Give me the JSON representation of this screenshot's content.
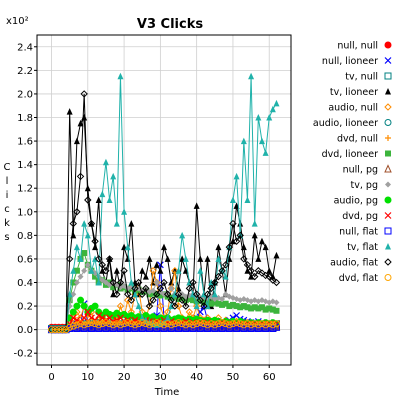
{
  "chart_data": {
    "type": "line",
    "title": "V3 Clicks",
    "xlabel": "Time",
    "ylabel": "Clicks",
    "y_multiplier_label": "x10²",
    "xlim": [
      -4,
      66
    ],
    "ylim": [
      -0.3,
      2.5
    ],
    "x_ticks": [
      0,
      10,
      20,
      30,
      40,
      50,
      60
    ],
    "x_tick_labels": [
      "0",
      "10",
      "20",
      "30",
      "40",
      "50",
      "60"
    ],
    "y_ticks": [
      -0.2,
      0.0,
      0.2,
      0.4,
      0.6,
      0.8,
      1.0,
      1.2,
      1.4,
      1.6,
      1.8,
      2.0,
      2.2,
      2.4
    ],
    "y_tick_labels": [
      "-0.2",
      "0.0",
      "0.2",
      "0.4",
      "0.6",
      "0.8",
      "1.0",
      "1.2",
      "1.4",
      "1.6",
      "1.8",
      "2.0",
      "2.2",
      "2.4"
    ],
    "grid": true,
    "legend_position": "right",
    "x": [
      0,
      1,
      2,
      3,
      4,
      5,
      6,
      7,
      8,
      9,
      10,
      11,
      12,
      13,
      14,
      15,
      16,
      17,
      18,
      19,
      20,
      21,
      22,
      23,
      24,
      25,
      26,
      27,
      28,
      29,
      30,
      31,
      32,
      33,
      34,
      35,
      36,
      37,
      38,
      39,
      40,
      41,
      42,
      43,
      44,
      45,
      46,
      47,
      48,
      49,
      50,
      51,
      52,
      53,
      54,
      55,
      56,
      57,
      58,
      59,
      60,
      61,
      62
    ],
    "series": [
      {
        "name": "null, null",
        "color": "#ff0000",
        "marker": "circle-filled",
        "values": [
          0.02,
          0.02,
          0.02,
          0.02,
          0.02,
          0.03,
          0.03,
          0.02,
          0.03,
          0.03,
          0.03,
          0.02,
          0.03,
          0.03,
          0.02,
          0.03,
          0.02,
          0.03,
          0.03,
          0.02,
          0.03,
          0.02,
          0.03,
          0.03,
          0.02,
          0.03,
          0.02,
          0.03,
          0.02,
          0.03,
          0.03,
          0.02,
          0.03,
          0.02,
          0.03,
          0.02,
          0.03,
          0.03,
          0.02,
          0.03,
          0.02,
          0.03,
          0.03,
          0.02,
          0.03,
          0.02,
          0.03,
          0.02,
          0.03,
          0.03,
          0.02,
          0.03,
          0.02,
          0.03,
          0.02,
          0.03,
          0.02,
          0.03,
          0.02,
          0.03,
          0.02,
          0.03,
          0.02
        ]
      },
      {
        "name": "null, lioneer",
        "color": "#0000ff",
        "marker": "x",
        "values": [
          0.0,
          0.0,
          0.0,
          0.0,
          0.0,
          0.02,
          0.04,
          0.05,
          0.04,
          0.22,
          0.06,
          0.04,
          0.05,
          0.03,
          0.04,
          0.06,
          0.04,
          0.03,
          0.05,
          0.06,
          0.04,
          0.05,
          0.04,
          0.07,
          0.05,
          0.06,
          0.1,
          0.08,
          0.07,
          0.12,
          0.55,
          0.1,
          0.08,
          0.06,
          0.07,
          0.05,
          0.08,
          0.06,
          0.07,
          0.08,
          0.1,
          0.15,
          0.2,
          0.08,
          0.07,
          0.06,
          0.05,
          0.07,
          0.06,
          0.08,
          0.1,
          0.12,
          0.09,
          0.08,
          0.07,
          0.06,
          0.05,
          0.07,
          0.06,
          0.05,
          0.06,
          0.05,
          0.04
        ]
      },
      {
        "name": "tv, null",
        "color": "#008080",
        "marker": "square",
        "values": [
          0.01,
          0.01,
          0.01,
          0.01,
          0.01,
          0.02,
          0.03,
          0.04,
          0.05,
          0.04,
          0.05,
          0.04,
          0.05,
          0.06,
          0.05,
          0.04,
          0.05,
          0.06,
          0.05,
          0.04,
          0.05,
          0.06,
          0.05,
          0.04,
          0.05,
          0.06,
          0.05,
          0.04,
          0.05,
          0.06,
          0.05,
          0.04,
          0.05,
          0.04,
          0.05,
          0.06,
          0.05,
          0.04,
          0.05,
          0.04,
          0.05,
          0.06,
          0.05,
          0.04,
          0.05,
          0.04,
          0.05,
          0.06,
          0.05,
          0.04,
          0.05,
          0.06,
          0.05,
          0.04,
          0.05,
          0.04,
          0.05,
          0.04,
          0.05,
          0.04,
          0.05,
          0.04,
          0.05
        ]
      },
      {
        "name": "tv, lioneer",
        "color": "#000000",
        "marker": "triangle-filled",
        "values": [
          0.0,
          0.0,
          0.0,
          0.0,
          0.0,
          1.85,
          0.8,
          1.6,
          1.75,
          1.8,
          1.2,
          0.9,
          0.7,
          1.1,
          0.5,
          0.4,
          0.6,
          0.3,
          0.5,
          0.35,
          0.7,
          0.6,
          0.9,
          0.4,
          0.3,
          0.5,
          0.45,
          0.6,
          0.4,
          0.55,
          0.5,
          0.7,
          0.6,
          0.4,
          0.5,
          0.35,
          0.6,
          0.5,
          0.4,
          0.3,
          1.05,
          0.6,
          0.3,
          0.6,
          0.2,
          0.4,
          0.7,
          0.5,
          0.3,
          0.6,
          0.75,
          1.05,
          0.9,
          0.7,
          0.5,
          0.45,
          0.8,
          0.6,
          0.75,
          0.7,
          0.5,
          0.45,
          0.63
        ]
      },
      {
        "name": "audio, null",
        "color": "#ff8c00",
        "marker": "diamond",
        "values": [
          0.0,
          0.0,
          0.0,
          0.0,
          0.0,
          0.05,
          0.1,
          0.15,
          0.1,
          0.2,
          0.1,
          0.15,
          0.05,
          0.08,
          0.1,
          0.07,
          0.12,
          0.1,
          0.08,
          0.2,
          0.1,
          0.25,
          0.15,
          0.3,
          0.35,
          0.15,
          0.1,
          0.2,
          0.5,
          0.4,
          0.2,
          0.1,
          0.15,
          0.35,
          0.5,
          0.2,
          0.1,
          0.08,
          0.15,
          0.1,
          0.2,
          0.1,
          0.08,
          0.1,
          0.06,
          0.08,
          0.1,
          0.05,
          0.08,
          0.06,
          0.05,
          0.07,
          0.06,
          0.05,
          0.06,
          0.05,
          0.04,
          0.05,
          0.04,
          0.05,
          0.04,
          0.05,
          0.04
        ]
      },
      {
        "name": "audio, lioneer",
        "color": "#008080",
        "marker": "circle",
        "values": [
          0.0,
          0.0,
          0.0,
          0.0,
          0.0,
          0.02,
          0.03,
          0.02,
          0.03,
          0.02,
          0.03,
          0.02,
          0.03,
          0.02,
          0.03,
          0.02,
          0.03,
          0.02,
          0.03,
          0.02,
          0.03,
          0.02,
          0.03,
          0.02,
          0.03,
          0.02,
          0.03,
          0.02,
          0.03,
          0.02,
          0.03,
          0.02,
          0.03,
          0.02,
          0.03,
          0.02,
          0.03,
          0.02,
          0.03,
          0.02,
          0.03,
          0.02,
          0.03,
          0.02,
          0.03,
          0.02,
          0.03,
          0.02,
          0.03,
          0.02,
          0.03,
          0.02,
          0.03,
          0.02,
          0.03,
          0.02,
          0.03,
          0.02,
          0.03,
          0.02,
          0.03,
          0.02,
          0.03
        ]
      },
      {
        "name": "dvd, null",
        "color": "#ff8c00",
        "marker": "plus",
        "values": [
          0.0,
          0.0,
          0.0,
          0.0,
          0.0,
          0.02,
          0.04,
          0.06,
          0.05,
          0.04,
          0.06,
          0.05,
          0.04,
          0.06,
          0.05,
          0.04,
          0.05,
          0.04,
          0.06,
          0.05,
          0.04,
          0.05,
          0.06,
          0.04,
          0.05,
          0.04,
          0.06,
          0.05,
          0.04,
          0.05,
          0.06,
          0.04,
          0.05,
          0.04,
          0.06,
          0.05,
          0.04,
          0.05,
          0.06,
          0.04,
          0.05,
          0.04,
          0.06,
          0.05,
          0.04,
          0.05,
          0.06,
          0.04,
          0.05,
          0.04,
          0.06,
          0.05,
          0.04,
          0.05,
          0.06,
          0.04,
          0.05,
          0.04,
          0.05,
          0.04,
          0.05,
          0.04,
          0.05
        ]
      },
      {
        "name": "dvd, lioneer",
        "color": "#3cb43c",
        "marker": "square-filled",
        "values": [
          0.0,
          0.0,
          0.0,
          0.0,
          0.0,
          0.25,
          0.4,
          0.5,
          0.6,
          0.65,
          0.55,
          0.5,
          0.45,
          0.4,
          0.42,
          0.38,
          0.4,
          0.36,
          0.38,
          0.35,
          0.36,
          0.34,
          0.35,
          0.33,
          0.34,
          0.32,
          0.33,
          0.3,
          0.31,
          0.3,
          0.29,
          0.3,
          0.28,
          0.27,
          0.28,
          0.26,
          0.27,
          0.25,
          0.26,
          0.25,
          0.24,
          0.25,
          0.23,
          0.24,
          0.22,
          0.23,
          0.22,
          0.21,
          0.22,
          0.2,
          0.21,
          0.2,
          0.19,
          0.2,
          0.19,
          0.18,
          0.19,
          0.18,
          0.19,
          0.17,
          0.18,
          0.17,
          0.16
        ]
      },
      {
        "name": "null, pg",
        "color": "#a0522d",
        "marker": "triangle",
        "values": [
          0.0,
          0.0,
          0.0,
          0.0,
          0.0,
          0.01,
          0.02,
          0.01,
          0.02,
          0.01,
          0.02,
          0.01,
          0.02,
          0.01,
          0.02,
          0.01,
          0.02,
          0.01,
          0.02,
          0.01,
          0.02,
          0.01,
          0.02,
          0.01,
          0.02,
          0.01,
          0.02,
          0.01,
          0.02,
          0.01,
          0.02,
          0.01,
          0.02,
          0.01,
          0.02,
          0.01,
          0.02,
          0.01,
          0.02,
          0.01,
          0.02,
          0.01,
          0.02,
          0.01,
          0.02,
          0.01,
          0.02,
          0.01,
          0.02,
          0.01,
          0.02,
          0.01,
          0.02,
          0.01,
          0.02,
          0.01,
          0.02,
          0.01,
          0.02,
          0.01,
          0.02,
          0.01,
          0.02
        ]
      },
      {
        "name": "tv, pg",
        "color": "#a0a0a0",
        "marker": "diamond-filled",
        "values": [
          0.0,
          0.0,
          0.0,
          0.0,
          0.0,
          0.2,
          0.3,
          0.4,
          0.45,
          0.5,
          0.55,
          0.5,
          0.48,
          0.45,
          0.42,
          0.4,
          0.38,
          0.4,
          0.38,
          0.36,
          0.37,
          0.35,
          0.36,
          0.34,
          0.35,
          0.33,
          0.34,
          0.32,
          0.33,
          0.4,
          0.32,
          0.3,
          0.31,
          0.35,
          0.3,
          0.29,
          0.3,
          0.28,
          0.29,
          0.3,
          0.28,
          0.27,
          0.28,
          0.27,
          0.28,
          0.26,
          0.27,
          0.26,
          0.3,
          0.28,
          0.27,
          0.26,
          0.25,
          0.26,
          0.25,
          0.24,
          0.25,
          0.24,
          0.25,
          0.24,
          0.23,
          0.24,
          0.23
        ]
      },
      {
        "name": "audio, pg",
        "color": "#00e000",
        "marker": "circle-filled",
        "values": [
          0.0,
          0.0,
          0.0,
          0.0,
          0.0,
          0.1,
          0.15,
          0.2,
          0.25,
          0.2,
          0.15,
          0.18,
          0.2,
          0.15,
          0.12,
          0.15,
          0.13,
          0.12,
          0.14,
          0.12,
          0.13,
          0.11,
          0.12,
          0.1,
          0.11,
          0.1,
          0.12,
          0.1,
          0.11,
          0.09,
          0.1,
          0.09,
          0.1,
          0.08,
          0.09,
          0.1,
          0.09,
          0.08,
          0.09,
          0.08,
          0.09,
          0.08,
          0.07,
          0.08,
          0.07,
          0.08,
          0.07,
          0.06,
          0.07,
          0.06,
          0.07,
          0.06,
          0.07,
          0.06,
          0.05,
          0.06,
          0.05,
          0.06,
          0.05,
          0.06,
          0.05,
          0.06,
          0.05
        ]
      },
      {
        "name": "dvd, pg",
        "color": "#ff0000",
        "marker": "x",
        "values": [
          0.0,
          0.0,
          0.0,
          0.0,
          0.0,
          0.05,
          0.1,
          0.08,
          0.06,
          0.1,
          0.15,
          0.1,
          0.08,
          0.12,
          0.1,
          0.08,
          0.1,
          0.07,
          0.08,
          0.1,
          0.07,
          0.08,
          0.06,
          0.08,
          0.07,
          0.06,
          0.08,
          0.07,
          0.06,
          0.07,
          0.06,
          0.08,
          0.06,
          0.07,
          0.06,
          0.05,
          0.06,
          0.07,
          0.05,
          0.06,
          0.05,
          0.06,
          0.05,
          0.06,
          0.05,
          0.04,
          0.05,
          0.06,
          0.05,
          0.04,
          0.05,
          0.04,
          0.05,
          0.04,
          0.05,
          0.04,
          0.05,
          0.04,
          0.05,
          0.04,
          0.05,
          0.04,
          0.05
        ]
      },
      {
        "name": "null, flat",
        "color": "#0000ff",
        "marker": "square",
        "values": [
          0.0,
          0.0,
          0.0,
          0.0,
          0.0,
          0.01,
          0.02,
          0.01,
          0.02,
          0.01,
          0.02,
          0.01,
          0.02,
          0.01,
          0.02,
          0.01,
          0.02,
          0.01,
          0.02,
          0.01,
          0.02,
          0.01,
          0.02,
          0.01,
          0.02,
          0.01,
          0.02,
          0.01,
          0.02,
          0.01,
          0.02,
          0.01,
          0.02,
          0.01,
          0.02,
          0.01,
          0.02,
          0.01,
          0.02,
          0.01,
          0.02,
          0.01,
          0.02,
          0.01,
          0.02,
          0.01,
          0.02,
          0.01,
          0.02,
          0.01,
          0.02,
          0.01,
          0.02,
          0.01,
          0.02,
          0.01,
          0.02,
          0.01,
          0.02,
          0.01,
          0.02,
          0.01,
          0.02
        ]
      },
      {
        "name": "tv, flat",
        "color": "#20b2aa",
        "marker": "triangle-filled",
        "values": [
          0.0,
          0.0,
          0.0,
          0.0,
          0.0,
          0.3,
          0.5,
          0.7,
          0.6,
          0.9,
          0.8,
          0.5,
          0.6,
          0.4,
          1.15,
          1.42,
          1.1,
          1.3,
          0.9,
          2.15,
          1.0,
          0.7,
          0.4,
          0.3,
          0.2,
          0.1,
          0.08,
          0.06,
          0.05,
          0.04,
          0.05,
          0.06,
          0.1,
          0.2,
          0.3,
          0.5,
          0.8,
          0.6,
          0.4,
          0.3,
          0.2,
          0.5,
          0.3,
          0.2,
          0.4,
          0.3,
          0.6,
          0.5,
          0.45,
          0.7,
          1.1,
          1.3,
          0.8,
          1.6,
          1.1,
          2.15,
          0.9,
          1.8,
          1.6,
          1.5,
          1.8,
          1.87,
          1.92
        ]
      },
      {
        "name": "audio, flat",
        "color": "#000000",
        "marker": "diamond",
        "values": [
          0.0,
          0.0,
          0.0,
          0.0,
          0.0,
          0.6,
          0.9,
          1.0,
          1.3,
          2.0,
          1.1,
          0.9,
          0.75,
          0.6,
          0.55,
          0.5,
          0.6,
          0.4,
          0.3,
          0.4,
          0.5,
          0.3,
          0.25,
          0.35,
          0.4,
          0.3,
          0.35,
          0.2,
          0.25,
          0.3,
          0.35,
          0.4,
          0.3,
          0.25,
          0.2,
          0.3,
          0.25,
          0.2,
          0.35,
          0.4,
          0.3,
          0.25,
          0.2,
          0.3,
          0.35,
          0.4,
          0.45,
          0.5,
          0.55,
          0.7,
          0.9,
          0.75,
          0.8,
          0.6,
          0.55,
          0.5,
          0.45,
          0.5,
          0.48,
          0.46,
          0.45,
          0.42,
          0.4
        ]
      },
      {
        "name": "dvd, flat",
        "color": "#ffa500",
        "marker": "circle",
        "values": [
          0.0,
          0.0,
          0.0,
          0.0,
          0.0,
          0.02,
          0.03,
          0.04,
          0.05,
          0.04,
          0.05,
          0.06,
          0.05,
          0.04,
          0.05,
          0.06,
          0.05,
          0.04,
          0.05,
          0.04,
          0.05,
          0.06,
          0.05,
          0.04,
          0.05,
          0.06,
          0.05,
          0.04,
          0.05,
          0.06,
          0.05,
          0.04,
          0.05,
          0.04,
          0.05,
          0.06,
          0.05,
          0.04,
          0.05,
          0.04,
          0.05,
          0.06,
          0.05,
          0.04,
          0.05,
          0.04,
          0.05,
          0.06,
          0.05,
          0.04,
          0.05,
          0.06,
          0.05,
          0.04,
          0.05,
          0.04,
          0.05,
          0.04,
          0.05,
          0.04,
          0.05,
          0.04,
          0.05
        ]
      }
    ]
  }
}
